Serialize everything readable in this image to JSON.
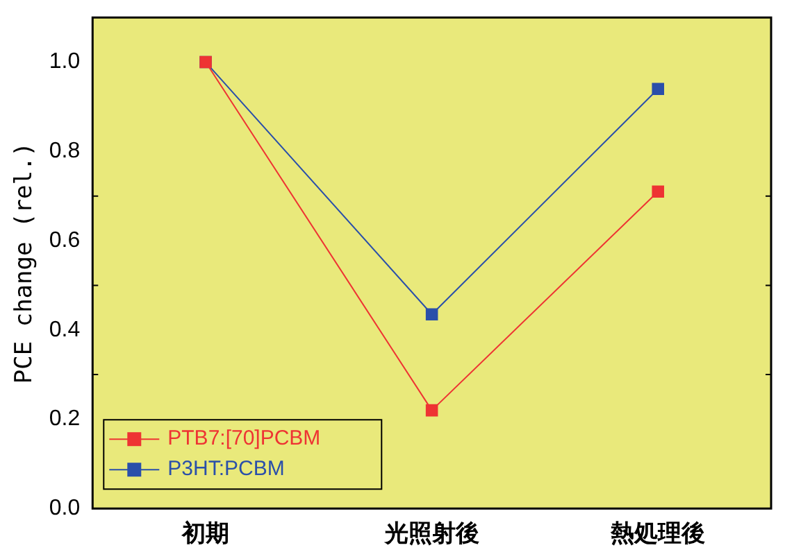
{
  "chart_data": {
    "type": "line",
    "ylabel": "PCE change (rel.)",
    "categories": [
      "初期",
      "光照射後",
      "熱処理後"
    ],
    "series": [
      {
        "name": "PTB7:[70]PCBM",
        "color": "#ee3333",
        "values": [
          1.0,
          0.22,
          0.71
        ]
      },
      {
        "name": "P3HT:PCBM",
        "color": "#2a4faa",
        "values": [
          1.0,
          0.435,
          0.94
        ]
      }
    ],
    "ylim": [
      0,
      1.1
    ],
    "yticks": [
      {
        "value": 0,
        "label": "0.0"
      },
      0.2,
      0.4,
      0.6,
      0.8,
      {
        "value": 1,
        "label": "1.0"
      }
    ],
    "grid": false,
    "legend": "bottom left",
    "marker": "square",
    "line_style": "solid"
  }
}
